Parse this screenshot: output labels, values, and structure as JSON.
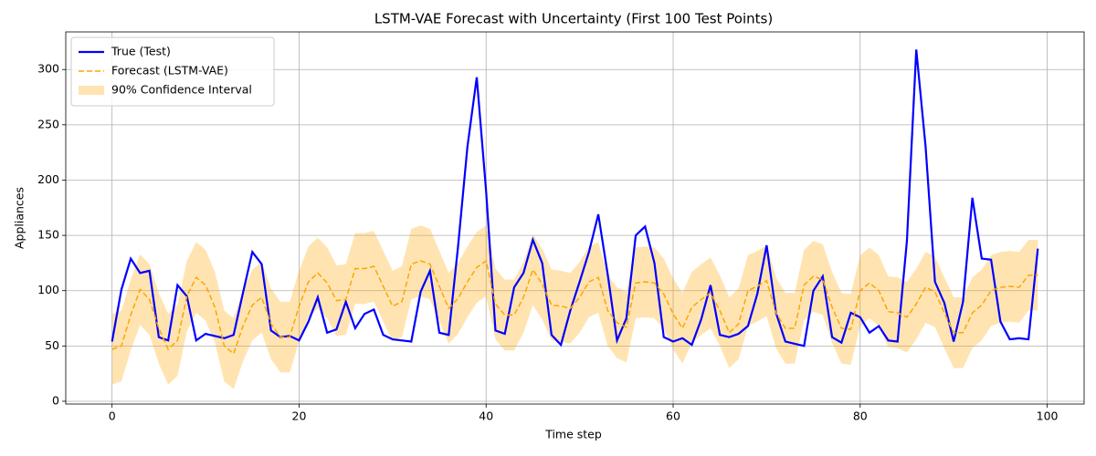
{
  "chart_data": {
    "type": "line",
    "title": "LSTM-VAE Forecast with Uncertainty (First 100 Test Points)",
    "x_label": "Time step",
    "y_label": "Appliances",
    "xlim": [
      -4.95,
      103.95
    ],
    "ylim": [
      -2.5,
      334
    ],
    "xticks": [
      0,
      20,
      40,
      60,
      80,
      100
    ],
    "yticks": [
      0,
      50,
      100,
      150,
      200,
      250,
      300
    ],
    "grid": true,
    "legend": "upper left",
    "x": [
      0,
      1,
      2,
      3,
      4,
      5,
      6,
      7,
      8,
      9,
      10,
      11,
      12,
      13,
      14,
      15,
      16,
      17,
      18,
      19,
      20,
      21,
      22,
      23,
      24,
      25,
      26,
      27,
      28,
      29,
      30,
      31,
      32,
      33,
      34,
      35,
      36,
      37,
      38,
      39,
      40,
      41,
      42,
      43,
      44,
      45,
      46,
      47,
      48,
      49,
      50,
      51,
      52,
      53,
      54,
      55,
      56,
      57,
      58,
      59,
      60,
      61,
      62,
      63,
      64,
      65,
      66,
      67,
      68,
      69,
      70,
      71,
      72,
      73,
      74,
      75,
      76,
      77,
      78,
      79,
      80,
      81,
      82,
      83,
      84,
      85,
      86,
      87,
      88,
      89,
      90,
      91,
      92,
      93,
      94,
      95,
      96,
      97,
      98,
      99
    ],
    "series": [
      {
        "name": "True (Test)",
        "color": "#0000ff",
        "dash": "solid",
        "values": [
          54,
          101,
          129,
          116,
          118,
          58,
          55,
          105,
          95,
          55,
          61,
          59,
          57,
          60,
          98,
          135,
          124,
          64,
          58,
          59,
          55,
          72,
          94,
          62,
          65,
          90,
          66,
          79,
          83,
          60,
          56,
          55,
          54,
          99,
          118,
          62,
          60,
          140,
          230,
          293,
          190,
          64,
          61,
          103,
          116,
          146,
          125,
          60,
          51,
          82,
          108,
          135,
          169,
          115,
          55,
          75,
          150,
          158,
          125,
          58,
          54,
          57,
          51,
          74,
          105,
          60,
          58,
          61,
          68,
          97,
          141,
          80,
          54,
          52,
          50,
          100,
          113,
          58,
          53,
          80,
          76,
          62,
          68,
          55,
          54,
          145,
          318,
          230,
          108,
          89,
          54,
          90,
          184,
          129,
          128,
          72,
          56,
          57,
          56,
          138
        ]
      },
      {
        "name": "Forecast (LSTM-VAE)",
        "color": "#ffa500",
        "dash": "dashed",
        "values": [
          47,
          50,
          78,
          101,
          92,
          66,
          47,
          55,
          95,
          112,
          105,
          85,
          50,
          43,
          68,
          87,
          94,
          70,
          58,
          58,
          86,
          108,
          116,
          107,
          91,
          92,
          120,
          120,
          122,
          104,
          86,
          90,
          124,
          127,
          124,
          104,
          84,
          93,
          108,
          121,
          127,
          88,
          78,
          78,
          94,
          119,
          106,
          87,
          86,
          84,
          94,
          108,
          112,
          82,
          71,
          67,
          107,
          108,
          107,
          97,
          79,
          66,
          85,
          92,
          98,
          82,
          62,
          70,
          100,
          104,
          109,
          80,
          66,
          66,
          105,
          113,
          110,
          85,
          66,
          65,
          100,
          107,
          100,
          81,
          80,
          76,
          88,
          103,
          99,
          80,
          62,
          62,
          80,
          87,
          100,
          103,
          104,
          103,
          114,
          114
        ]
      }
    ],
    "bands": [
      {
        "name": "90% Confidence Interval",
        "color": "#ffa500",
        "lower": [
          15,
          18,
          46,
          69,
          60,
          34,
          15,
          23,
          63,
          80,
          73,
          53,
          18,
          11,
          36,
          55,
          62,
          38,
          26,
          26,
          54,
          76,
          84,
          75,
          59,
          60,
          88,
          88,
          90,
          72,
          54,
          58,
          92,
          95,
          92,
          72,
          52,
          61,
          76,
          89,
          95,
          56,
          46,
          46,
          62,
          87,
          74,
          55,
          54,
          52,
          62,
          76,
          80,
          50,
          39,
          35,
          75,
          76,
          75,
          65,
          47,
          34,
          53,
          60,
          66,
          50,
          30,
          38,
          68,
          72,
          77,
          48,
          34,
          34,
          73,
          81,
          78,
          53,
          34,
          33,
          68,
          75,
          68,
          49,
          48,
          44,
          56,
          71,
          67,
          48,
          30,
          30,
          48,
          55,
          68,
          71,
          72,
          71,
          82,
          82
        ],
        "upper": [
          79,
          82,
          110,
          133,
          124,
          98,
          79,
          87,
          127,
          144,
          137,
          117,
          82,
          75,
          100,
          119,
          126,
          102,
          90,
          90,
          118,
          140,
          148,
          139,
          123,
          124,
          152,
          152,
          154,
          136,
          118,
          122,
          156,
          159,
          156,
          136,
          116,
          125,
          140,
          153,
          159,
          120,
          110,
          110,
          126,
          151,
          138,
          119,
          118,
          116,
          126,
          140,
          144,
          114,
          103,
          99,
          139,
          140,
          139,
          129,
          111,
          98,
          117,
          124,
          130,
          114,
          94,
          102,
          132,
          136,
          141,
          112,
          98,
          98,
          137,
          145,
          142,
          117,
          98,
          97,
          132,
          139,
          132,
          113,
          112,
          108,
          120,
          135,
          131,
          112,
          94,
          94,
          112,
          119,
          132,
          135,
          136,
          135,
          146,
          146
        ]
      }
    ]
  }
}
